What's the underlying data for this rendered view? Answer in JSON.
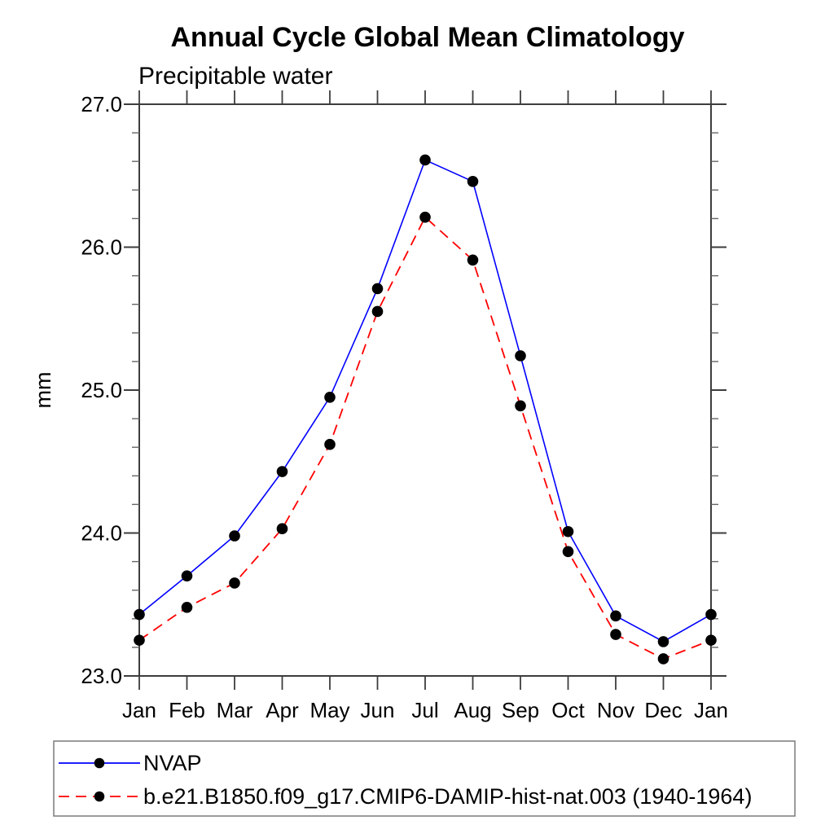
{
  "chart_data": {
    "type": "line",
    "title": "Annual Cycle Global Mean Climatology",
    "subtitle": "Precipitable water",
    "ylabel": "mm",
    "x_categories": [
      "Jan",
      "Feb",
      "Mar",
      "Apr",
      "May",
      "Jun",
      "Jul",
      "Aug",
      "Sep",
      "Oct",
      "Nov",
      "Dec",
      "Jan"
    ],
    "y_tick_labels": [
      "23.0",
      "24.0",
      "25.0",
      "26.0",
      "27.0"
    ],
    "y_ticks": [
      23.0,
      24.0,
      25.0,
      26.0,
      27.0
    ],
    "ylim": [
      23.0,
      27.0
    ],
    "y_minor_step": 0.2,
    "grid": false,
    "legend_position": "bottom",
    "axis_color": "#3d3d3d",
    "minor_tick_color": "#666666",
    "marker_color": "#000000",
    "series": [
      {
        "name": "NVAP",
        "color": "#0000ff",
        "style": "solid",
        "marker": "circle",
        "values": [
          23.43,
          23.7,
          23.98,
          24.43,
          24.95,
          25.71,
          26.61,
          26.46,
          25.24,
          24.01,
          23.42,
          23.24,
          23.43
        ]
      },
      {
        "name": "b.e21.B1850.f09_g17.CMIP6-DAMIP-hist-nat.003 (1940-1964)",
        "color": "#ff0000",
        "style": "dashed",
        "marker": "circle",
        "values": [
          23.25,
          23.48,
          23.65,
          24.03,
          24.62,
          25.55,
          26.21,
          25.91,
          24.89,
          23.87,
          23.29,
          23.12,
          23.25
        ]
      }
    ]
  }
}
